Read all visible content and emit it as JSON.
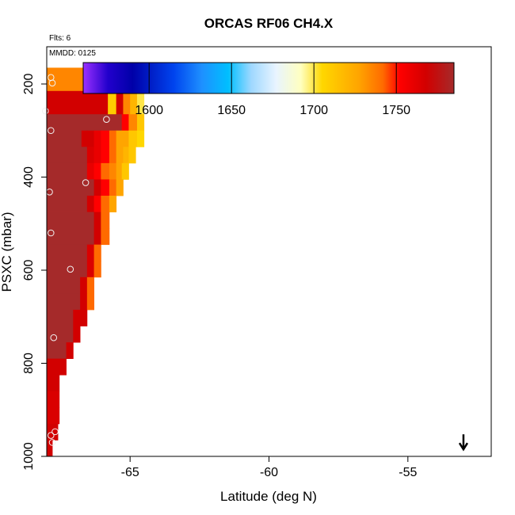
{
  "chart_data": {
    "type": "heatmap",
    "title": "ORCAS RF06 CH4.X",
    "flts_label": "Flts: 6",
    "date_label": "MMDD: 0125",
    "xlabel": "Latitude (deg N)",
    "ylabel": "PSXC (mbar)",
    "xlim": [
      -68,
      -52
    ],
    "ylim": [
      1000,
      120
    ],
    "y_reversed": true,
    "xticks": [
      -65,
      -60,
      -55
    ],
    "xtick_labels": [
      "-65",
      "-60",
      "-55"
    ],
    "yticks": [
      200,
      400,
      600,
      800,
      1000
    ],
    "ytick_labels": [
      "200",
      "400",
      "600",
      "800",
      "1000"
    ],
    "colorbar": {
      "range": [
        1560,
        1785
      ],
      "ticks": [
        1600,
        1650,
        1700,
        1750
      ],
      "tick_labels": [
        "1600",
        "1650",
        "1700",
        "1750"
      ],
      "stops": [
        {
          "v": 1560,
          "c": "#9b30ff"
        },
        {
          "v": 1575,
          "c": "#2200cc"
        },
        {
          "v": 1590,
          "c": "#0000a8"
        },
        {
          "v": 1615,
          "c": "#0044ee"
        },
        {
          "v": 1632,
          "c": "#1e90ff"
        },
        {
          "v": 1648,
          "c": "#00bfff"
        },
        {
          "v": 1662,
          "c": "#9fd8ff"
        },
        {
          "v": 1677,
          "c": "#e8f4ff"
        },
        {
          "v": 1692,
          "c": "#ffffc0"
        },
        {
          "v": 1705,
          "c": "#ffd700"
        },
        {
          "v": 1727,
          "c": "#ffa500"
        },
        {
          "v": 1742,
          "c": "#ff6a00"
        },
        {
          "v": 1752,
          "c": "#ff0000"
        },
        {
          "v": 1768,
          "c": "#d20000"
        },
        {
          "v": 1785,
          "c": "#a52a2a"
        }
      ]
    },
    "rows": [
      {
        "p0": 165,
        "p1": 215,
        "edges": [
          -68,
          -66.5,
          -65.3,
          -65.05,
          -64.9,
          -64.75,
          -64.55,
          -64.4,
          -64.2
        ],
        "values": [
          1735,
          1738,
          1700,
          1640,
          1570,
          1730,
          1712,
          1690
        ]
      },
      {
        "p0": 215,
        "p1": 265,
        "edges": [
          -68,
          -65.8,
          -65.5,
          -65.25,
          -65.0,
          -64.75,
          -64.5
        ],
        "values": [
          1768,
          1710,
          1768,
          1735,
          1720,
          1700
        ]
      },
      {
        "p0": 265,
        "p1": 300,
        "edges": [
          -68,
          -65.3,
          -65.05,
          -64.75,
          -64.5
        ],
        "values": [
          1785,
          1752,
          1735,
          1712
        ]
      },
      {
        "p0": 300,
        "p1": 335,
        "edges": [
          -68,
          -66.75,
          -66.55,
          -66.3,
          -66.05,
          -65.75,
          -65.5,
          -65.3,
          -65.05,
          -64.75,
          -64.5
        ],
        "values": [
          1785,
          1768,
          1768,
          1760,
          1752,
          1742,
          1727,
          1727,
          1712,
          1705
        ]
      },
      {
        "p0": 335,
        "p1": 370,
        "edges": [
          -68,
          -66.55,
          -66.3,
          -66.05,
          -65.75,
          -65.5,
          -65.25,
          -65.05,
          -64.8
        ],
        "values": [
          1785,
          1765,
          1760,
          1752,
          1742,
          1727,
          1720,
          1712
        ]
      },
      {
        "p0": 370,
        "p1": 405,
        "edges": [
          -68,
          -66.55,
          -66.3,
          -66.05,
          -65.75,
          -65.5,
          -65.3,
          -65.05
        ],
        "values": [
          1785,
          1760,
          1752,
          1742,
          1735,
          1727,
          1712
        ]
      },
      {
        "p0": 405,
        "p1": 440,
        "edges": [
          -68,
          -66.3,
          -66.05,
          -65.75,
          -65.5,
          -65.25
        ],
        "values": [
          1785,
          1768,
          1752,
          1742,
          1727
        ]
      },
      {
        "p0": 440,
        "p1": 475,
        "edges": [
          -68,
          -66.55,
          -66.3,
          -66.05,
          -65.75,
          -65.5
        ],
        "values": [
          1785,
          1768,
          1752,
          1742,
          1727
        ]
      },
      {
        "p0": 475,
        "p1": 510,
        "edges": [
          -68,
          -66.3,
          -66.05,
          -65.75
        ],
        "values": [
          1785,
          1768,
          1742
        ]
      },
      {
        "p0": 510,
        "p1": 545,
        "edges": [
          -68,
          -66.3,
          -66.05,
          -65.75
        ],
        "values": [
          1785,
          1768,
          1742
        ]
      },
      {
        "p0": 545,
        "p1": 580,
        "edges": [
          -68,
          -66.55,
          -66.3,
          -66.05
        ],
        "values": [
          1785,
          1765,
          1742
        ]
      },
      {
        "p0": 580,
        "p1": 615,
        "edges": [
          -68,
          -66.55,
          -66.3,
          -66.05
        ],
        "values": [
          1785,
          1765,
          1742
        ]
      },
      {
        "p0": 615,
        "p1": 650,
        "edges": [
          -68,
          -66.8,
          -66.55,
          -66.3
        ],
        "values": [
          1785,
          1768,
          1742
        ]
      },
      {
        "p0": 650,
        "p1": 685,
        "edges": [
          -68,
          -66.8,
          -66.55,
          -66.3
        ],
        "values": [
          1785,
          1768,
          1742
        ]
      },
      {
        "p0": 685,
        "p1": 720,
        "edges": [
          -68,
          -67.05,
          -66.55
        ],
        "values": [
          1785,
          1768
        ]
      },
      {
        "p0": 720,
        "p1": 755,
        "edges": [
          -68,
          -67.05,
          -66.8
        ],
        "values": [
          1785,
          1768
        ]
      },
      {
        "p0": 755,
        "p1": 790,
        "edges": [
          -68,
          -67.3,
          -67.05
        ],
        "values": [
          1785,
          1768
        ]
      },
      {
        "p0": 790,
        "p1": 825,
        "edges": [
          -68,
          -67.3
        ],
        "values": [
          1768
        ]
      },
      {
        "p0": 825,
        "p1": 860,
        "edges": [
          -68,
          -67.55
        ],
        "values": [
          1768
        ]
      },
      {
        "p0": 860,
        "p1": 895,
        "edges": [
          -68,
          -67.55
        ],
        "values": [
          1765
        ]
      },
      {
        "p0": 895,
        "p1": 930,
        "edges": [
          -68,
          -67.55
        ],
        "values": [
          1765
        ]
      },
      {
        "p0": 930,
        "p1": 965,
        "edges": [
          -68,
          -67.6
        ],
        "values": [
          1768
        ]
      },
      {
        "p0": 965,
        "p1": 1000,
        "edges": [
          -68,
          -67.8
        ],
        "values": [
          1768
        ]
      }
    ],
    "points": [
      {
        "x": -67.85,
        "y": 186
      },
      {
        "x": -67.8,
        "y": 198
      },
      {
        "x": -65.2,
        "y": 194
      },
      {
        "x": -64.8,
        "y": 182
      },
      {
        "x": -64.75,
        "y": 181
      },
      {
        "x": -68.05,
        "y": 258
      },
      {
        "x": -65.85,
        "y": 276
      },
      {
        "x": -67.85,
        "y": 300
      },
      {
        "x": -66.6,
        "y": 412
      },
      {
        "x": -67.9,
        "y": 432
      },
      {
        "x": -67.85,
        "y": 520
      },
      {
        "x": -67.15,
        "y": 598
      },
      {
        "x": -67.75,
        "y": 745
      },
      {
        "x": -67.7,
        "y": 947
      },
      {
        "x": -67.85,
        "y": 955
      },
      {
        "x": -67.8,
        "y": 970
      }
    ],
    "marker": {
      "x": -53.0,
      "y": 985,
      "symbol": "arrow-down"
    }
  }
}
